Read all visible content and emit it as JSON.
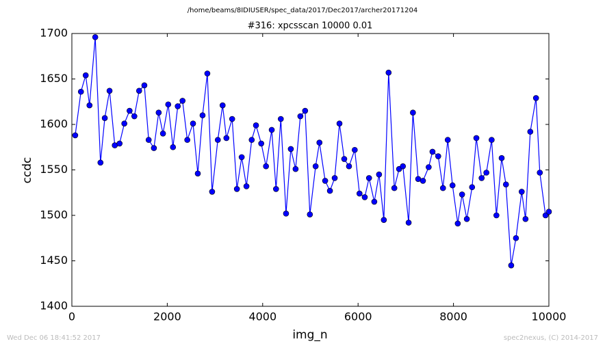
{
  "chart_data": {
    "type": "line",
    "suptitle": "/home/beams/8IDIUSER/spec_data/2017/Dec2017/archer20171204",
    "title": "#316: xpcsscan 10000 0.01",
    "xlabel": "img_n",
    "ylabel": "ccdc",
    "footer_left": "Wed Dec 06 18:41:52 2017",
    "footer_right": "spec2nexus, (C) 2014-2017",
    "xlim": [
      0,
      10000
    ],
    "xticks": [
      0,
      2000,
      4000,
      6000,
      8000,
      10000
    ],
    "ylim": [
      1400,
      1700
    ],
    "yticks": [
      1400,
      1450,
      1500,
      1550,
      1600,
      1650,
      1700
    ],
    "grid": false,
    "x": [
      70,
      190,
      290,
      370,
      490,
      600,
      690,
      790,
      900,
      1000,
      1100,
      1210,
      1310,
      1410,
      1520,
      1610,
      1720,
      1820,
      1910,
      2020,
      2120,
      2220,
      2320,
      2420,
      2540,
      2640,
      2740,
      2840,
      2940,
      3060,
      3160,
      3240,
      3360,
      3460,
      3560,
      3660,
      3770,
      3860,
      3970,
      4070,
      4190,
      4280,
      4380,
      4490,
      4590,
      4690,
      4790,
      4890,
      4990,
      5110,
      5190,
      5310,
      5410,
      5510,
      5610,
      5710,
      5810,
      5930,
      6030,
      6140,
      6230,
      6340,
      6440,
      6540,
      6640,
      6760,
      6860,
      6940,
      7060,
      7150,
      7260,
      7360,
      7480,
      7560,
      7680,
      7780,
      7880,
      7980,
      8090,
      8180,
      8280,
      8390,
      8480,
      8590,
      8690,
      8800,
      8900,
      9010,
      9100,
      9210,
      9310,
      9430,
      9510,
      9610,
      9730,
      9810,
      9930,
      10000
    ],
    "series": [
      {
        "name": "ccdc",
        "color": "#0000ff",
        "values": [
          1588,
          1636,
          1654,
          1621,
          1696,
          1558,
          1607,
          1637,
          1577,
          1579,
          1601,
          1615,
          1609,
          1637,
          1643,
          1583,
          1574,
          1613,
          1590,
          1622,
          1575,
          1620,
          1626,
          1583,
          1601,
          1546,
          1610,
          1656,
          1526,
          1583,
          1621,
          1585,
          1606,
          1529,
          1564,
          1532,
          1583,
          1599,
          1579,
          1554,
          1594,
          1529,
          1606,
          1502,
          1573,
          1551,
          1609,
          1615,
          1501,
          1554,
          1580,
          1538,
          1527,
          1541,
          1601,
          1562,
          1554,
          1572,
          1524,
          1520,
          1541,
          1515,
          1545,
          1495,
          1657,
          1530,
          1551,
          1554,
          1492,
          1613,
          1540,
          1538,
          1553,
          1570,
          1565,
          1530,
          1583,
          1533,
          1491,
          1523,
          1496,
          1531,
          1585,
          1541,
          1547,
          1583,
          1500,
          1563,
          1534,
          1445,
          1475,
          1526,
          1496,
          1592,
          1629,
          1547,
          1500,
          1504
        ]
      }
    ]
  }
}
